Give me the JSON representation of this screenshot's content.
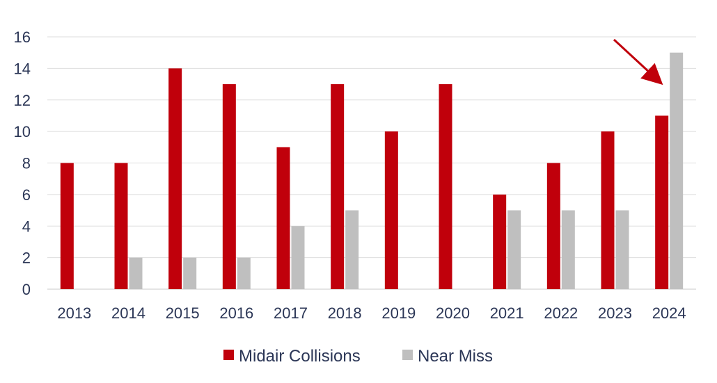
{
  "chart_data": {
    "type": "bar",
    "title": "",
    "xlabel": "",
    "ylabel": "",
    "categories": [
      "2013",
      "2014",
      "2015",
      "2016",
      "2017",
      "2018",
      "2019",
      "2020",
      "2021",
      "2022",
      "2023",
      "2024"
    ],
    "series": [
      {
        "name": "Midair Collisions",
        "color": "#c0000b",
        "values": [
          8,
          8,
          14,
          13,
          9,
          13,
          10,
          13,
          6,
          8,
          10,
          11
        ]
      },
      {
        "name": "Near Miss",
        "color": "#bfbfbf",
        "values": [
          0,
          2,
          2,
          2,
          4,
          5,
          0,
          0,
          5,
          5,
          5,
          15
        ]
      }
    ],
    "ylim": [
      0,
      16
    ],
    "yticks": [
      0,
      2,
      4,
      6,
      8,
      10,
      12,
      14,
      16
    ],
    "grid": true,
    "legend_position": "bottom",
    "annotation": {
      "type": "arrow",
      "color": "#c0000b",
      "points_to": "2024 Near Miss"
    }
  }
}
